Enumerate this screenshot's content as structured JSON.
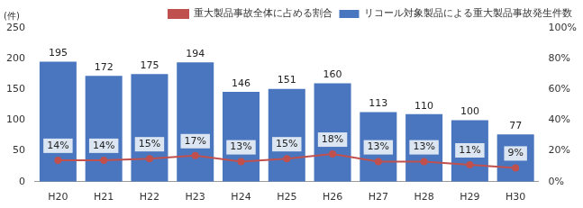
{
  "chart_data": {
    "type": "bar",
    "ylabel": "(件)",
    "categories": [
      "H20",
      "H21",
      "H22",
      "H23",
      "H24",
      "H25",
      "H26",
      "H27",
      "H28",
      "H29",
      "H30"
    ],
    "series": [
      {
        "name": "リコール対象製品による重大製品事故発生件数",
        "type": "bar",
        "color": "#4a76bf",
        "values": [
          195,
          172,
          175,
          194,
          146,
          151,
          160,
          113,
          110,
          100,
          77
        ]
      },
      {
        "name": "重大製品事故全体に占める割合",
        "type": "line",
        "axis": "y2",
        "color": "#c0504d",
        "marker": "circle",
        "values": [
          14,
          14,
          15,
          17,
          13,
          15,
          18,
          13,
          13,
          11,
          9
        ],
        "value_labels": [
          "14%",
          "14%",
          "15%",
          "17%",
          "13%",
          "15%",
          "18%",
          "13%",
          "13%",
          "11%",
          "9%"
        ]
      }
    ],
    "ylim": [
      0,
      250
    ],
    "yticks": [
      0,
      50,
      100,
      150,
      200,
      250
    ],
    "y2lim": [
      0,
      100
    ],
    "y2ticks": [
      {
        "value": 0,
        "label": "0%"
      },
      {
        "value": 20,
        "label": "20%"
      },
      {
        "value": 40,
        "label": "40%"
      },
      {
        "value": 60,
        "label": "60%"
      },
      {
        "value": 80,
        "label": "80%"
      },
      {
        "value": 100,
        "label": "100%"
      }
    ],
    "grid": false,
    "legend": "top-right",
    "data_labels": true
  }
}
